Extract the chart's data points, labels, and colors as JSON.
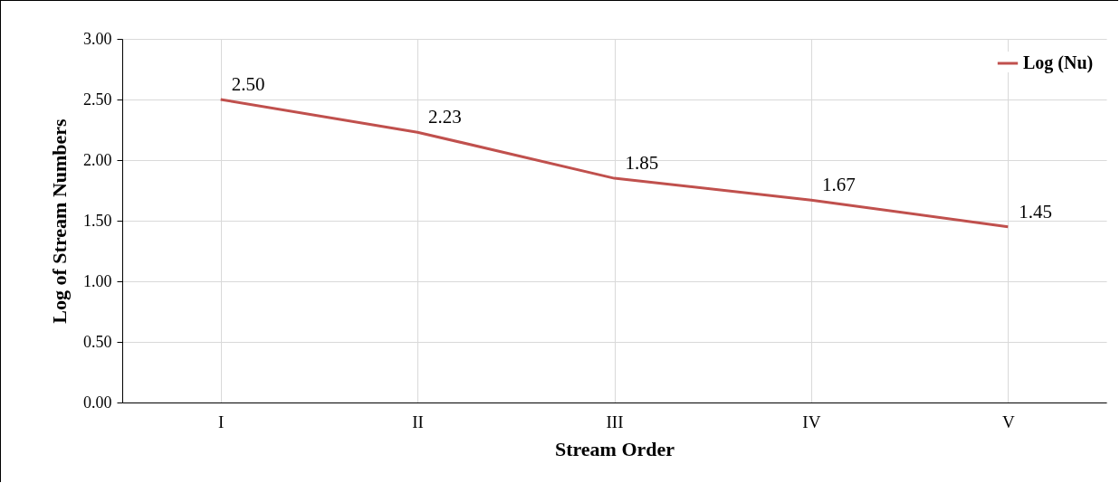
{
  "chart_data": {
    "type": "line",
    "xlabel": "Stream Order",
    "ylabel": "Log of Stream Numbers",
    "categories": [
      "I",
      "II",
      "III",
      "IV",
      "V"
    ],
    "series": [
      {
        "name": "Log (Nu)",
        "color": "#c0504d",
        "values": [
          2.5,
          2.23,
          1.85,
          1.67,
          1.45
        ],
        "value_labels": [
          "2.50",
          "2.23",
          "1.85",
          "1.67",
          "1.45"
        ]
      }
    ],
    "ylim": [
      0,
      3
    ],
    "yticks": [
      {
        "value": 0,
        "label": "0.00"
      },
      {
        "value": 0.5,
        "label": "0.50"
      },
      {
        "value": 1,
        "label": "1.00"
      },
      {
        "value": 1.5,
        "label": "1.50"
      },
      {
        "value": 2,
        "label": "2.00"
      },
      {
        "value": 2.5,
        "label": "2.50"
      },
      {
        "value": 3,
        "label": "3.00"
      }
    ],
    "grid": true,
    "legend": "top right",
    "marker": "none",
    "line_style": "solid"
  }
}
